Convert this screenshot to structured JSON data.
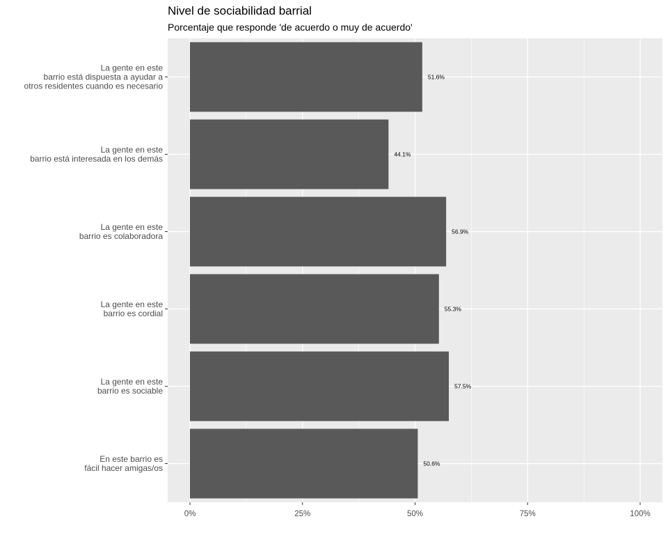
{
  "chart_data": {
    "type": "bar",
    "orientation": "horizontal",
    "title": "Nivel de sociabilidad barrial",
    "subtitle": "Porcentaje que responde 'de acuerdo o muy de acuerdo'",
    "xlabel": "",
    "ylabel": "",
    "categories": [
      [
        "La gente en este",
        "barrio está dispuesta a ayudar a",
        "otros residentes cuando es necesario"
      ],
      [
        "La gente en este",
        "barrio está interesada en los demás"
      ],
      [
        "La gente en este",
        "barrio es colaboradora"
      ],
      [
        "La gente en este",
        "barrio es cordial"
      ],
      [
        "La gente en este",
        "barrio es sociable"
      ],
      [
        "En este barrio es",
        "fácil hacer amigas/os"
      ]
    ],
    "values": [
      51.6,
      44.1,
      56.9,
      55.3,
      57.5,
      50.6
    ],
    "data_labels": [
      "51.6%",
      "44.1%",
      "56.9%",
      "55.3%",
      "57.5%",
      "50.6%"
    ],
    "xlim": [
      0,
      100
    ],
    "x_ticks": [
      0,
      25,
      50,
      75,
      100
    ],
    "x_tick_labels": [
      "0%",
      "25%",
      "50%",
      "75%",
      "100%"
    ],
    "grid": true,
    "legend": "none",
    "colors": {
      "bar": "#595959",
      "panel": "#ebebeb",
      "grid": "#ffffff"
    }
  }
}
